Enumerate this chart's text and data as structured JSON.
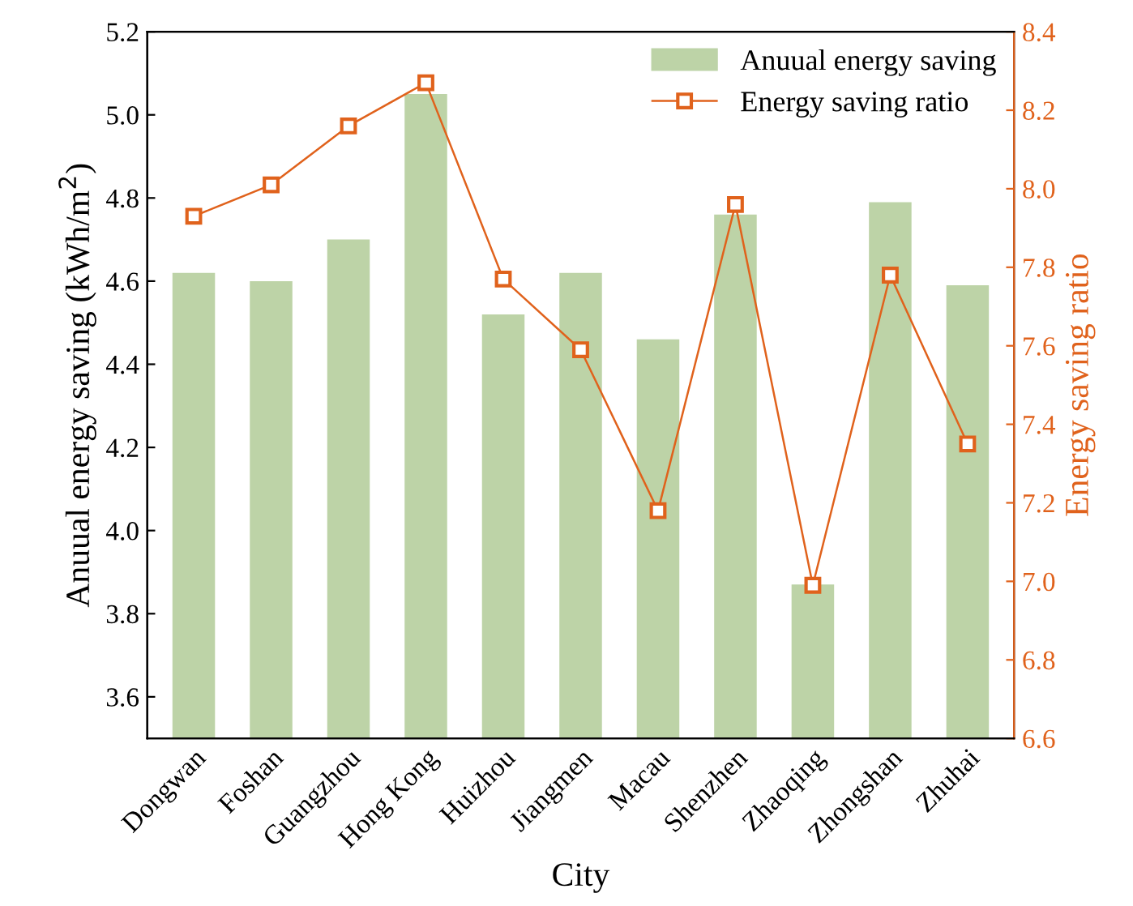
{
  "chart_data": {
    "type": "bar",
    "xlabel": "City",
    "ylabel": "Anuual energy saving (kWh/m$^{2}$)",
    "y2label": "Energy saving ratio",
    "categories": [
      "Dongwan",
      "Foshan",
      "Guangzhou",
      "Hong Kong",
      "Huizhou",
      "Jiangmen",
      "Macau",
      "Shenzhen",
      "Zhaoqing",
      "Zhongshan",
      "Zhuhai"
    ],
    "series": [
      {
        "name": "Anuual energy saving",
        "color": "#bdd3a7",
        "values": [
          4.62,
          4.6,
          4.7,
          5.05,
          4.52,
          4.62,
          4.46,
          4.76,
          3.87,
          4.79,
          4.59
        ]
      },
      {
        "name": "Energy saving ratio",
        "type": "line",
        "axis": "y2",
        "color": "#e0621c",
        "marker": "square",
        "line_style": "solid",
        "values": [
          7.93,
          8.01,
          8.16,
          8.27,
          7.77,
          7.59,
          7.18,
          7.96,
          6.99,
          7.78,
          7.35
        ]
      }
    ],
    "ylim": [
      3.5,
      5.2
    ],
    "yticks": [
      3.6,
      3.8,
      {
        "value": 4,
        "label": "4.0"
      },
      4.2,
      4.4,
      4.6,
      4.8,
      {
        "value": 5,
        "label": "5.0"
      },
      5.2
    ],
    "y2lim": [
      6.6,
      8.4
    ],
    "y2ticks": [
      6.6,
      6.8,
      {
        "value": 7,
        "label": "7.0"
      },
      7.2,
      7.4,
      7.6,
      7.8,
      {
        "value": 8,
        "label": "8.0"
      },
      8.2,
      8.4
    ],
    "grid": false,
    "legend": "top right"
  }
}
